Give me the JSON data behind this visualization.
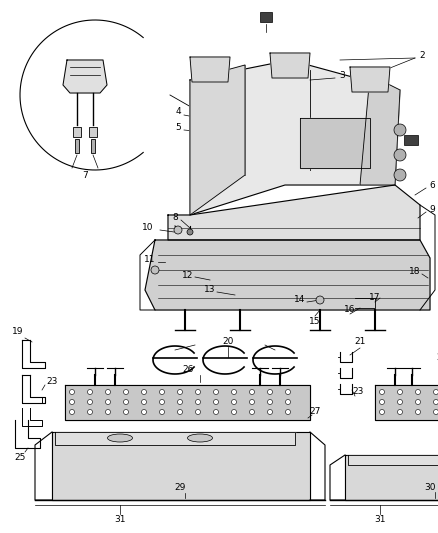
{
  "background_color": "#ffffff",
  "fig_width": 4.38,
  "fig_height": 5.33,
  "label_fontsize": 6.5
}
